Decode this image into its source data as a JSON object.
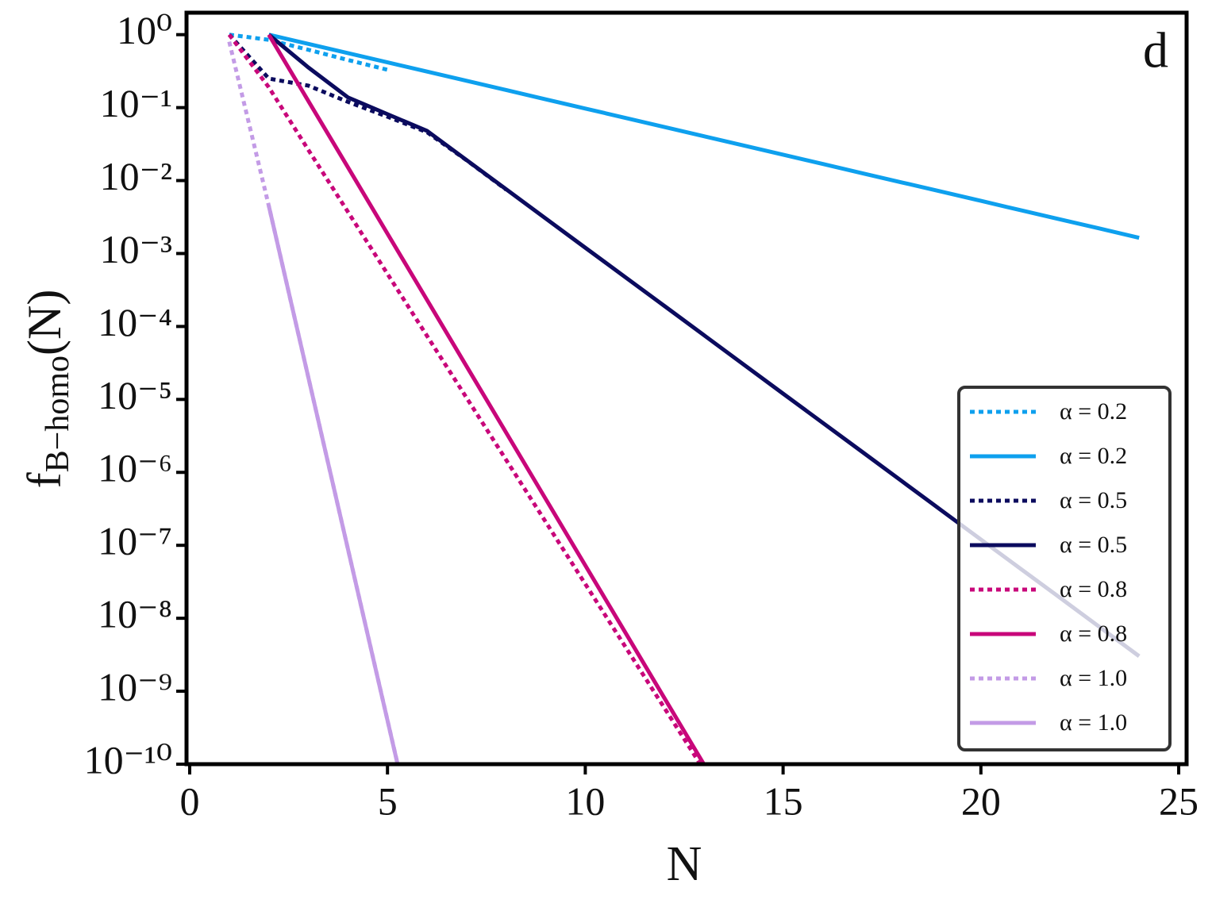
{
  "chart_data": {
    "type": "line",
    "annotation": "d",
    "xlabel": "N",
    "ylabel": {
      "text": "f",
      "subscript": "B−homo",
      "suffix": "(N)"
    },
    "yscale": "log",
    "legend": "lower right",
    "xlim": [
      -0.08,
      25.2
    ],
    "ylim": [
      1e-10,
      2
    ],
    "xticks": [
      0,
      5,
      10,
      15,
      20,
      25
    ],
    "yticks": [
      {
        "value": 1,
        "label": "10⁰"
      },
      {
        "value": 0.1,
        "label": "10⁻¹"
      },
      {
        "value": 0.01,
        "label": "10⁻²"
      },
      {
        "value": 0.001,
        "label": "10⁻³"
      },
      {
        "value": 0.0001,
        "label": "10⁻⁴"
      },
      {
        "value": 1e-05,
        "label": "10⁻⁵"
      },
      {
        "value": 1e-06,
        "label": "10⁻⁶"
      },
      {
        "value": 1e-07,
        "label": "10⁻⁷"
      },
      {
        "value": 1e-08,
        "label": "10⁻⁸"
      },
      {
        "value": 1e-09,
        "label": "10⁻⁹"
      },
      {
        "value": 1e-10,
        "label": "10⁻¹⁰"
      }
    ],
    "series": [
      {
        "name": "α = 0.2",
        "color": "#0ea0ee",
        "style": "dotted",
        "x": [
          1,
          2,
          3,
          4,
          5
        ],
        "values": [
          1,
          0.85,
          0.62,
          0.45,
          0.33
        ]
      },
      {
        "name": "α = 0.2",
        "color": "#0ea0ee",
        "style": "solid",
        "x": [
          2,
          3,
          4,
          5,
          6,
          7,
          8,
          9,
          10,
          11,
          12,
          13,
          14,
          15,
          16,
          17,
          18,
          19,
          20,
          21,
          22,
          23,
          24
        ],
        "values": [
          1,
          0.747,
          0.558,
          0.417,
          0.312,
          0.233,
          0.174,
          0.13,
          0.0971,
          0.0726,
          0.0542,
          0.0405,
          0.0303,
          0.0226,
          0.0169,
          0.0126,
          0.00943,
          0.00705,
          0.00527,
          0.00393,
          0.00294,
          0.0022,
          0.00164
        ]
      },
      {
        "name": "α = 0.5",
        "color": "#0b0b5e",
        "style": "dotted",
        "x": [
          1,
          2,
          3,
          4,
          5,
          6,
          7,
          8
        ],
        "values": [
          1,
          0.25,
          0.2,
          0.12,
          0.075,
          0.046,
          0.019,
          0.0075
        ]
      },
      {
        "name": "α = 0.5",
        "color": "#0b0b5e",
        "style": "solid",
        "x": [
          2,
          3,
          4,
          5,
          6,
          7,
          8,
          9,
          10,
          11,
          12,
          13,
          14,
          15,
          16,
          17,
          18,
          19,
          20,
          21,
          22,
          23,
          24
        ],
        "values": [
          1,
          0.355,
          0.138,
          0.0813,
          0.0479,
          0.0191,
          0.00759,
          0.00302,
          0.0012,
          0.000479,
          0.000191,
          7.59e-05,
          3.02e-05,
          1.2e-05,
          4.79e-06,
          1.91e-06,
          7.59e-07,
          3.02e-07,
          1.2e-07,
          4.79e-08,
          1.91e-08,
          7.59e-09,
          3.02e-09
        ]
      },
      {
        "name": "α = 0.8",
        "color": "#c8077a",
        "style": "dotted",
        "x": [
          1,
          2,
          3,
          4,
          5,
          6,
          7,
          8,
          9,
          10,
          11,
          12,
          13
        ],
        "values": [
          1,
          0.19,
          0.0263,
          0.00372,
          0.000525,
          7.41e-05,
          1.05e-05,
          1.48e-06,
          2.09e-07,
          2.95e-08,
          4.17e-09,
          5.89e-10,
          8.32e-11
        ]
      },
      {
        "name": "α = 0.8",
        "color": "#c8077a",
        "style": "solid",
        "x": [
          2,
          3,
          4,
          5,
          6,
          7,
          8,
          9,
          10,
          11,
          12,
          13
        ],
        "values": [
          1,
          0.123,
          0.0152,
          0.00187,
          0.000231,
          2.84e-05,
          3.5e-06,
          4.31e-07,
          5.31e-08,
          6.54e-09,
          8.06e-10,
          9.93e-11
        ]
      },
      {
        "name": "α = 1.0",
        "color": "#c39be6",
        "style": "dotted",
        "x": [
          1,
          2,
          3,
          4,
          5,
          6
        ],
        "values": [
          0.8,
          0.0045,
          2e-05,
          8.9e-08,
          4e-10,
          1.8e-12
        ]
      },
      {
        "name": "α = 1.0",
        "color": "#c39be6",
        "style": "solid",
        "x": [
          2,
          3,
          4,
          5,
          6
        ],
        "values": [
          0.0045,
          2e-05,
          8.9e-08,
          3.98e-10,
          1.78e-12
        ]
      }
    ]
  }
}
